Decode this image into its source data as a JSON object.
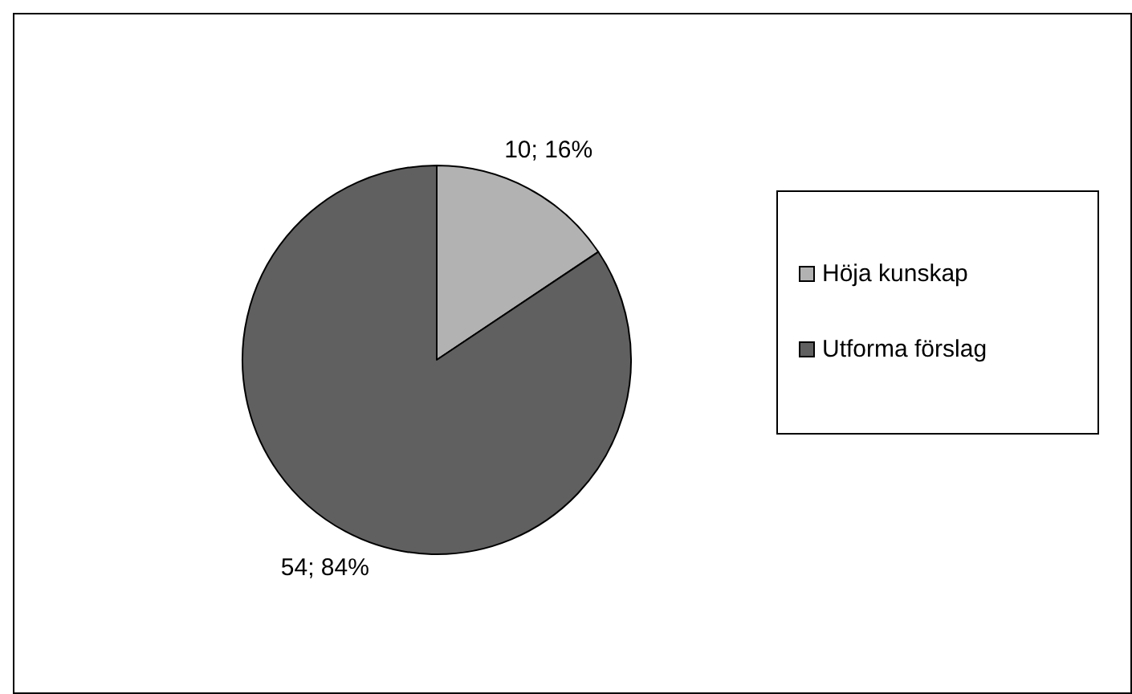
{
  "chart_data": {
    "type": "pie",
    "categories": [
      "Höja kunskap",
      "Utforma förslag"
    ],
    "values": [
      10,
      54
    ],
    "colors": [
      "#b2b2b2",
      "#606060"
    ],
    "value_labels": [
      "10; 16%",
      "54; 84%"
    ],
    "legend": "right"
  }
}
